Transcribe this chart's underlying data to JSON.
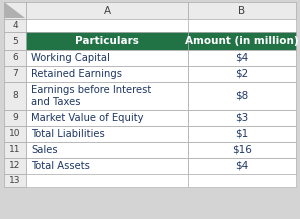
{
  "col_header": [
    "Particulars",
    "Amount (in million)"
  ],
  "rows": [
    [
      "Working Capital",
      "$4"
    ],
    [
      "Retained Earnings",
      "$2"
    ],
    [
      "Earnings before Interest\nand Taxes",
      "$8"
    ],
    [
      "Market Value of Equity",
      "$3"
    ],
    [
      "Total Liabilities",
      "$1"
    ],
    [
      "Sales",
      "$16"
    ],
    [
      "Total Assets",
      "$4"
    ]
  ],
  "row_labels": [
    "4",
    "5",
    "6",
    "7",
    "8",
    "9",
    "10",
    "11",
    "12",
    "13"
  ],
  "header_bg": "#217346",
  "header_text_color": "#ffffff",
  "cell_bg": "#ffffff",
  "grid_color": "#aaaaaa",
  "row_num_color": "#404040",
  "col_label_color": "#404040",
  "outer_bg": "#d4d4d4",
  "col_a_label": "A",
  "col_b_label": "B",
  "row_num_bg": "#ebebeb",
  "col_label_bg": "#ebebeb",
  "data_text_color": "#1f3864"
}
